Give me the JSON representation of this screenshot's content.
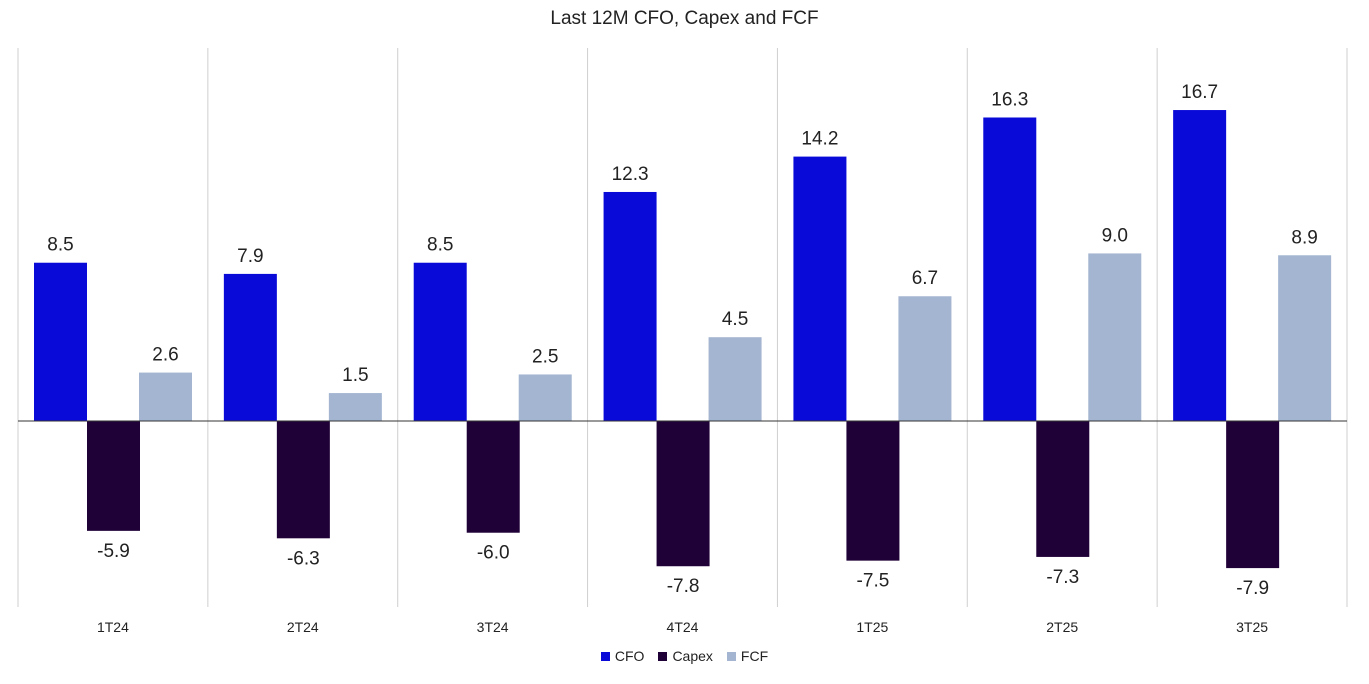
{
  "chart_data": {
    "type": "bar",
    "title": "Last 12M CFO, Capex and FCF",
    "categories": [
      "1T24",
      "2T24",
      "3T24",
      "4T24",
      "1T25",
      "2T25",
      "3T25"
    ],
    "series": [
      {
        "name": "CFO",
        "color": "#0a0ad8",
        "values": [
          8.5,
          7.9,
          8.5,
          12.3,
          14.2,
          16.3,
          16.7
        ],
        "labels": [
          "8.5",
          "7.9",
          "8.5",
          "12.3",
          "14.2",
          "16.3",
          "16.7"
        ]
      },
      {
        "name": "Capex",
        "color": "#1f0037",
        "values": [
          -5.9,
          -6.3,
          -6.0,
          -7.8,
          -7.5,
          -7.3,
          -7.9
        ],
        "labels": [
          "-5.9",
          "-6.3",
          "-6.0",
          "-7.8",
          "-7.5",
          "-7.3",
          "-7.9"
        ]
      },
      {
        "name": "FCF",
        "color": "#a3b5d1",
        "values": [
          2.6,
          1.5,
          2.5,
          4.5,
          6.7,
          9.0,
          8.9
        ],
        "labels": [
          "2.6",
          "1.5",
          "2.5",
          "4.5",
          "6.7",
          "9.0",
          "8.9"
        ]
      }
    ],
    "ylim": [
      -10,
      20
    ],
    "xlabel": "",
    "ylabel": "",
    "grid": "vertical category separators",
    "legend_position": "bottom-center"
  }
}
